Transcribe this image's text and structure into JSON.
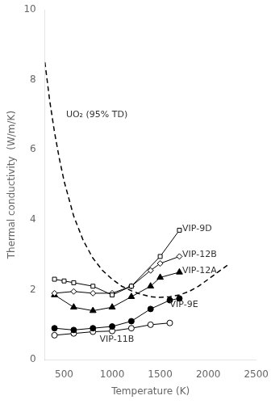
{
  "chart_data": {
    "type": "line",
    "xlabel": "Temperature (K)",
    "ylabel": "Thermal conductivity  (W/m/K)",
    "xlim": [
      300,
      2500
    ],
    "ylim": [
      0,
      10
    ],
    "xticks": [
      500,
      1000,
      1500,
      2000,
      2500
    ],
    "yticks": [
      0,
      2,
      4,
      6,
      8,
      10
    ],
    "grid": false,
    "series": [
      {
        "name": "UO₂ (95% TD)",
        "color": "black",
        "line_style": "dashed",
        "marker": "none",
        "x": [
          300,
          350,
          400,
          450,
          500,
          600,
          700,
          800,
          900,
          1000,
          1100,
          1200,
          1300,
          1400,
          1500,
          1600,
          1700,
          1800,
          1900,
          2000,
          2100,
          2200
        ],
        "values": [
          8.5,
          7.4,
          6.5,
          5.75,
          5.1,
          4.1,
          3.4,
          2.9,
          2.55,
          2.3,
          2.1,
          1.97,
          1.87,
          1.8,
          1.78,
          1.8,
          1.85,
          1.95,
          2.1,
          2.3,
          2.5,
          2.7
        ]
      },
      {
        "name": "VIP-9D",
        "color": "black",
        "line_style": "solid",
        "marker": "open-square",
        "x": [
          400,
          500,
          600,
          800,
          1000,
          1200,
          1500,
          1700
        ],
        "values": [
          2.3,
          2.25,
          2.2,
          2.1,
          1.85,
          2.1,
          2.95,
          3.7
        ]
      },
      {
        "name": "VIP-12B",
        "color": "black",
        "line_style": "solid",
        "marker": "open-diamond",
        "x": [
          400,
          600,
          800,
          1000,
          1200,
          1400,
          1500,
          1700
        ],
        "values": [
          1.9,
          1.95,
          1.9,
          1.9,
          2.1,
          2.55,
          2.75,
          2.95
        ]
      },
      {
        "name": "VIP-12A",
        "color": "black",
        "line_style": "solid",
        "marker": "filled-triangle",
        "x": [
          400,
          600,
          800,
          1000,
          1200,
          1400,
          1500,
          1700
        ],
        "values": [
          1.85,
          1.5,
          1.4,
          1.5,
          1.8,
          2.1,
          2.35,
          2.5
        ]
      },
      {
        "name": "VIP-9E",
        "color": "black",
        "line_style": "solid",
        "marker": "filled-circle",
        "x": [
          400,
          600,
          800,
          1000,
          1200,
          1400,
          1600,
          1700
        ],
        "values": [
          0.9,
          0.85,
          0.9,
          0.95,
          1.1,
          1.45,
          1.7,
          1.75
        ]
      },
      {
        "name": "VIP-11B",
        "color": "black",
        "line_style": "solid",
        "marker": "open-circle",
        "x": [
          400,
          600,
          800,
          1000,
          1200,
          1400,
          1600
        ],
        "values": [
          0.7,
          0.75,
          0.8,
          0.82,
          0.9,
          1.0,
          1.05
        ]
      }
    ],
    "annotations": [
      {
        "text": "UO₂ (95% TD)",
        "x": 520,
        "y": 7.0
      },
      {
        "text": "VIP-9D",
        "x": 1730,
        "y": 3.75
      },
      {
        "text": "VIP-12B",
        "x": 1730,
        "y": 3.0
      },
      {
        "text": "VIP-12A",
        "x": 1730,
        "y": 2.55
      },
      {
        "text": "VIP-9E",
        "x": 1600,
        "y": 1.58
      },
      {
        "text": "VIP-11B",
        "x": 870,
        "y": 0.58
      }
    ]
  }
}
